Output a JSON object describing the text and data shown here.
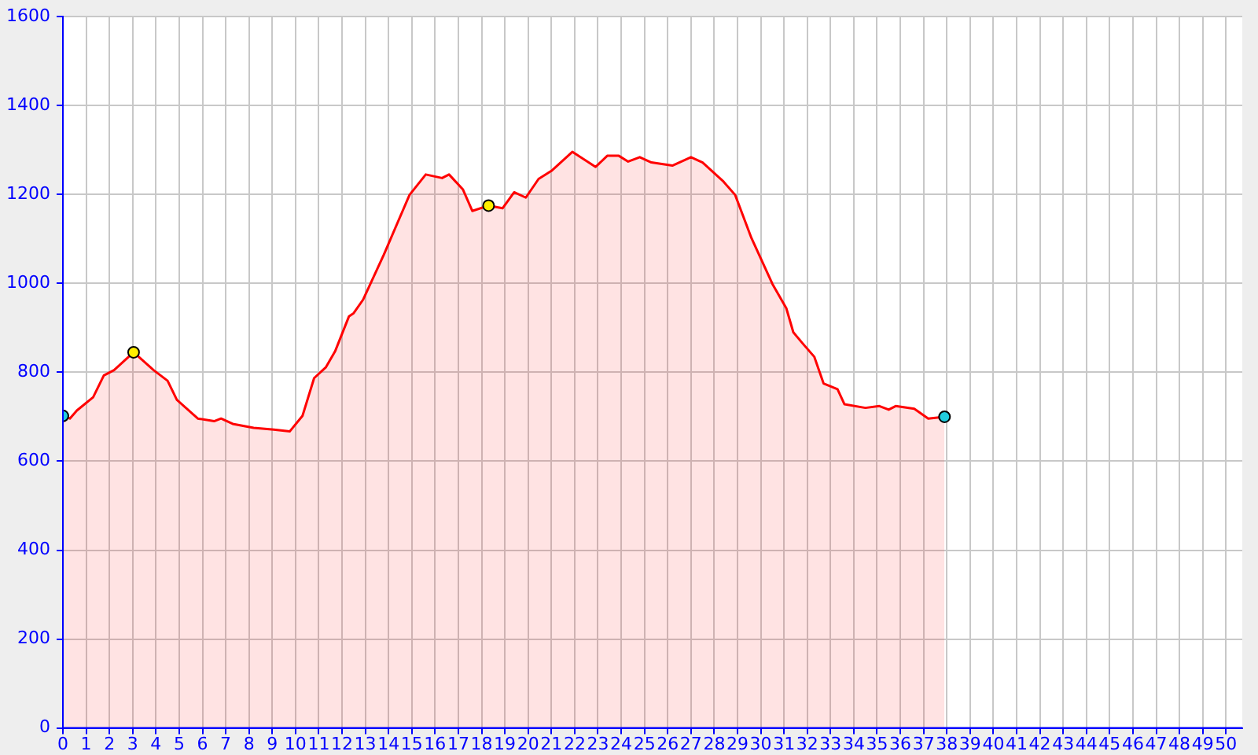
{
  "chart_data": {
    "type": "area",
    "xlim": [
      0,
      50.7
    ],
    "xticks": [
      0,
      1,
      2,
      3,
      4,
      5,
      6,
      7,
      8,
      9,
      10,
      11,
      12,
      13,
      14,
      15,
      16,
      17,
      18,
      19,
      20,
      21,
      22,
      23,
      24,
      25,
      26,
      27,
      28,
      29,
      30,
      31,
      32,
      33,
      34,
      35,
      36,
      37,
      38,
      39,
      40,
      41,
      42,
      43,
      44,
      45,
      46,
      47,
      48,
      49,
      50
    ],
    "ylim": [
      0,
      1600
    ],
    "yticks": [
      0,
      200,
      400,
      600,
      800,
      1000,
      1200,
      1400,
      1600
    ],
    "grid": true,
    "series": [
      {
        "color": "#ff0000",
        "x": [
          0,
          0.3,
          0.6,
          1.3,
          1.76,
          2.2,
          3.04,
          3.9,
          4.5,
          4.9,
          5.8,
          6.5,
          6.8,
          7.3,
          8.2,
          9.07,
          9.75,
          10.3,
          10.8,
          11.3,
          11.7,
          12.3,
          12.5,
          12.9,
          13.8,
          14.9,
          15.6,
          16.3,
          16.6,
          17.2,
          17.6,
          18.3,
          18.9,
          19.4,
          19.9,
          20.45,
          21,
          21.9,
          22.9,
          23.4,
          23.9,
          24.3,
          24.8,
          25.3,
          26.2,
          27,
          27.5,
          28.4,
          28.9,
          29.6,
          30.5,
          31.1,
          31.4,
          31.8,
          32.3,
          32.7,
          33.3,
          33.6,
          34.5,
          35.1,
          35.5,
          35.8,
          36.6,
          37.2,
          37.9
        ],
        "values": [
          702,
          696,
          714,
          744,
          793,
          805,
          845,
          805,
          781,
          738,
          696,
          690,
          696,
          684,
          675,
          671,
          667,
          702,
          787,
          811,
          847,
          926,
          933,
          963,
          1065,
          1199,
          1245,
          1237,
          1245,
          1211,
          1163,
          1175,
          1169,
          1205,
          1193,
          1235,
          1253,
          1296,
          1262,
          1287,
          1287,
          1274,
          1284,
          1272,
          1265,
          1284,
          1272,
          1229,
          1199,
          1102,
          999,
          944,
          890,
          865,
          835,
          775,
          762,
          728,
          720,
          724,
          716,
          724,
          718,
          696,
          700
        ]
      },
      {
        "type": "scatter",
        "x": [
          0,
          3.04,
          18.3,
          37.9
        ],
        "values": [
          702,
          845,
          1175,
          700
        ],
        "colors": [
          "#22ccdd",
          "#ffee00",
          "#ffee00",
          "#22ccdd"
        ]
      }
    ]
  }
}
